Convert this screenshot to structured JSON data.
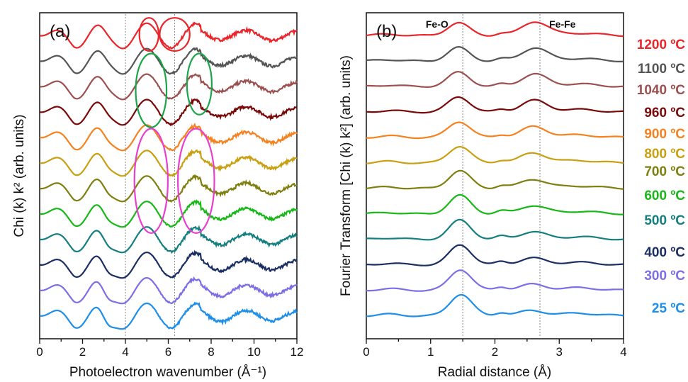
{
  "chart_data": [
    {
      "type": "line",
      "panel_label": "(a)",
      "xlabel": "Photoelectron wavenumber (Å⁻¹)",
      "ylabel": "Chi (k) k² (arb. units)",
      "xlim": [
        0,
        12
      ],
      "xticks": [
        "0",
        "2",
        "4",
        "6",
        "8",
        "10",
        "12"
      ],
      "grid": false,
      "reference_lines_x": [
        4.0,
        6.3
      ],
      "series": [
        {
          "name": "1200 ºC",
          "color": "#e8262b",
          "offset": 11.0
        },
        {
          "name": "1100 ºC",
          "color": "#555555",
          "offset": 10.0
        },
        {
          "name": "1040 ºC",
          "color": "#9c5050",
          "offset": 9.0
        },
        {
          "name": "960 ºC",
          "color": "#7a0a0a",
          "offset": 8.0
        },
        {
          "name": "900 ºC",
          "color": "#f5821f",
          "offset": 7.0
        },
        {
          "name": "800 ºC",
          "color": "#c8a012",
          "offset": 6.0
        },
        {
          "name": "700 ºC",
          "color": "#7f7f10",
          "offset": 5.0
        },
        {
          "name": "600 ºC",
          "color": "#19b819",
          "offset": 4.0
        },
        {
          "name": "500 ºC",
          "color": "#157f7f",
          "offset": 3.0
        },
        {
          "name": "400 ºC",
          "color": "#1b2f63",
          "offset": 2.0
        },
        {
          "name": "300 ºC",
          "color": "#7b6ee6",
          "offset": 1.0
        },
        {
          "name": "25 ºC",
          "color": "#1e8ee8",
          "offset": 0.0
        }
      ],
      "annotations": [
        {
          "shape": "ellipse",
          "color": "#e8262b",
          "cx": 5.1,
          "cy": 11.05,
          "rx": 0.45,
          "ry": 0.65
        },
        {
          "shape": "ellipse",
          "color": "#e8262b",
          "cx": 6.3,
          "cy": 11.05,
          "rx": 0.7,
          "ry": 0.65
        },
        {
          "shape": "ellipse",
          "color": "#1aa54a",
          "cx": 5.2,
          "cy": 8.85,
          "rx": 0.72,
          "ry": 1.45
        },
        {
          "shape": "ellipse",
          "color": "#1aa54a",
          "cx": 7.45,
          "cy": 9.1,
          "rx": 0.58,
          "ry": 1.2
        },
        {
          "shape": "ellipse",
          "color": "#e83fcf",
          "cx": 5.2,
          "cy": 5.3,
          "rx": 0.78,
          "ry": 2.05
        },
        {
          "shape": "ellipse",
          "color": "#e83fcf",
          "cx": 7.3,
          "cy": 5.3,
          "rx": 0.85,
          "ry": 2.05
        }
      ]
    },
    {
      "type": "line",
      "panel_label": "(b)",
      "xlabel": "Radial distance (Å)",
      "ylabel": "Fourier Transform [Chi (k) k²] (arb. units)",
      "xlim": [
        0,
        4
      ],
      "xticks": [
        "0",
        "1",
        "2",
        "3",
        "4"
      ],
      "grid": false,
      "reference_lines_x": [
        1.5,
        2.7
      ],
      "peak_labels": [
        {
          "text": "Fe-O",
          "x": 1.1
        },
        {
          "text": "Fe-Fe",
          "x": 3.05
        }
      ],
      "series": [
        {
          "name": "1200 ºC",
          "color": "#e8262b",
          "offset": 11.0
        },
        {
          "name": "1100 ºC",
          "color": "#555555",
          "offset": 10.0
        },
        {
          "name": "1040 ºC",
          "color": "#9c5050",
          "offset": 9.0
        },
        {
          "name": "960 ºC",
          "color": "#7a0a0a",
          "offset": 8.0
        },
        {
          "name": "900 ºC",
          "color": "#f5821f",
          "offset": 7.0
        },
        {
          "name": "800 ºC",
          "color": "#c8a012",
          "offset": 6.0
        },
        {
          "name": "700 ºC",
          "color": "#7f7f10",
          "offset": 5.0
        },
        {
          "name": "600 ºC",
          "color": "#19b819",
          "offset": 4.0
        },
        {
          "name": "500 ºC",
          "color": "#157f7f",
          "offset": 3.0
        },
        {
          "name": "400 ºC",
          "color": "#1b2f63",
          "offset": 2.0
        },
        {
          "name": "300 ºC",
          "color": "#7b6ee6",
          "offset": 1.0
        },
        {
          "name": "25 ºC",
          "color": "#1e8ee8",
          "offset": 0.0
        }
      ]
    }
  ],
  "legend": {
    "placement": "right",
    "entries": [
      {
        "text": "1200 ºC",
        "color": "#e8262b"
      },
      {
        "text": "1100 ºC",
        "color": "#555555"
      },
      {
        "text": "1040 ºC",
        "color": "#9c5050"
      },
      {
        "text": "960 ºC",
        "color": "#7a0a0a"
      },
      {
        "text": "900 ºC",
        "color": "#f5821f"
      },
      {
        "text": "800 ºC",
        "color": "#c8a012"
      },
      {
        "text": "700 ºC",
        "color": "#7f7f10"
      },
      {
        "text": "600 ºC",
        "color": "#19b819"
      },
      {
        "text": "500 ºC",
        "color": "#157f7f"
      },
      {
        "text": "400 ºC",
        "color": "#1b2f63"
      },
      {
        "text": "300 ºC",
        "color": "#7b6ee6"
      },
      {
        "text": "25 ºC",
        "color": "#1e8ee8"
      }
    ]
  }
}
